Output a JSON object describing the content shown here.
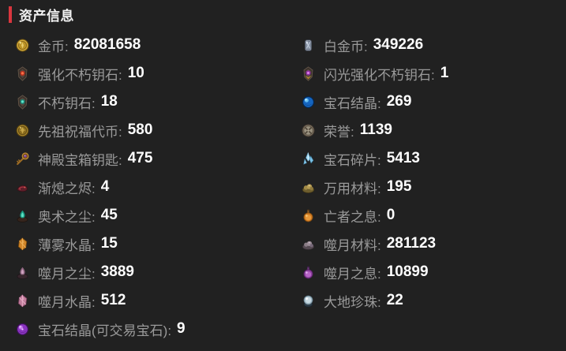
{
  "panel": {
    "title": "资产信息",
    "separator": ":"
  },
  "colors": {
    "background": "#212121",
    "accent": "#d9363e",
    "label": "#9a9a9a",
    "value": "#ffffff"
  },
  "columns": {
    "left": [
      {
        "label": "金币",
        "value": "82081658",
        "icon": "gold-coin-icon"
      },
      {
        "label": "强化不朽钥石",
        "value": "10",
        "icon": "enhanced-immortal-keystone-icon"
      },
      {
        "label": "不朽钥石",
        "value": "18",
        "icon": "immortal-keystone-icon"
      },
      {
        "label": "先祖祝福代币",
        "value": "580",
        "icon": "ancestor-blessing-token-icon"
      },
      {
        "label": "神殿宝箱钥匙",
        "value": "475",
        "icon": "temple-chest-key-icon"
      },
      {
        "label": "渐熄之烬",
        "value": "4",
        "icon": "fading-ember-icon"
      },
      {
        "label": "奥术之尘",
        "value": "45",
        "icon": "arcane-dust-icon"
      },
      {
        "label": "薄雾水晶",
        "value": "15",
        "icon": "mist-crystal-icon"
      },
      {
        "label": "噬月之尘",
        "value": "3889",
        "icon": "moon-dust-icon"
      },
      {
        "label": "噬月水晶",
        "value": "512",
        "icon": "moon-crystal-icon"
      },
      {
        "label": "宝石结晶(可交易宝石)",
        "value": "9",
        "icon": "tradable-gem-crystal-icon"
      }
    ],
    "right": [
      {
        "label": "白金币",
        "value": "349226",
        "icon": "platinum-coin-icon"
      },
      {
        "label": "闪光强化不朽钥石",
        "value": "1",
        "icon": "flash-enhanced-immortal-keystone-icon"
      },
      {
        "label": "宝石结晶",
        "value": "269",
        "icon": "gem-crystal-orb-icon"
      },
      {
        "label": "荣誉",
        "value": "1139",
        "icon": "honor-medal-icon"
      },
      {
        "label": "宝石碎片",
        "value": "5413",
        "icon": "gem-shard-icon"
      },
      {
        "label": "万用材料",
        "value": "195",
        "icon": "universal-material-icon"
      },
      {
        "label": "亡者之息",
        "value": "0",
        "icon": "dead-breath-flask-icon"
      },
      {
        "label": "噬月材料",
        "value": "281123",
        "icon": "moon-material-icon"
      },
      {
        "label": "噬月之息",
        "value": "10899",
        "icon": "moon-breath-flask-icon"
      },
      {
        "label": "大地珍珠",
        "value": "22",
        "icon": "earth-pearl-icon"
      }
    ]
  }
}
